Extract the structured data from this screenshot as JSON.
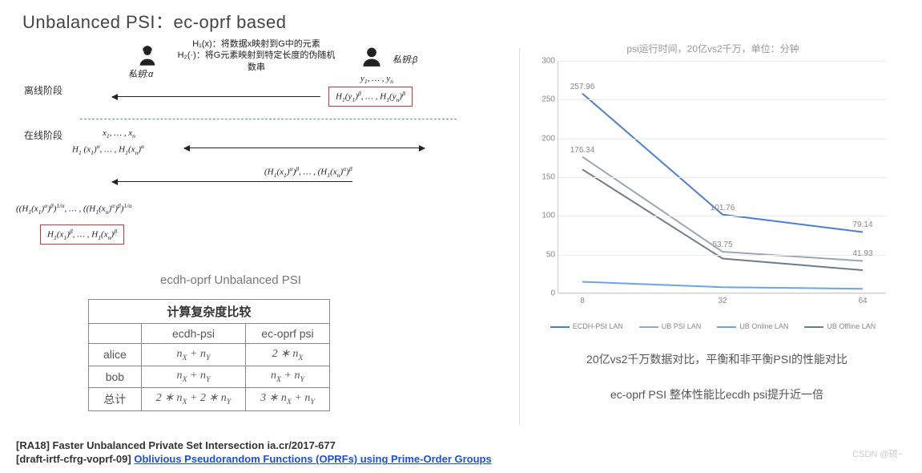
{
  "title": "Unbalanced PSI：ec-oprf based",
  "protocol": {
    "hash_notes": {
      "h1": "H₁(x)：将数据x映射到G中的元素",
      "h2": "H₂(·)：将G元素映射到特定长度的伪随机数串"
    },
    "alice_key_label": "私钥:α",
    "bob_key_label": "私钥:β",
    "offline_phase_label": "离线阶段",
    "online_phase_label": "在线阶段",
    "bob_input": "y₁, … , yₙ",
    "bob_boxed": "H₁(y₁)^β, … , H₁(yₙ)^β",
    "alice_input": "x₁, … , xₙ",
    "alice_h1": "H₁ (x₁)^α, … , H₁(xₙ)^α",
    "bob_reply": "(H₁(x₁)^α)^β, … , (H₁(xₙ)^α)^β",
    "alice_unblind": "((H₁(x₁)^α)^β)^{1/α}, … , ((H₁(xₙ)^α)^β)^{1/α}",
    "alice_boxed": "H₁(x₁)^β, … , H₁(xₙ)^β",
    "caption": "ecdh-oprf Unbalanced PSI"
  },
  "table": {
    "title": "计算复杂度比较",
    "columns": [
      "",
      "ecdh-psi",
      "ec-oprf psi"
    ],
    "rows": [
      [
        "alice",
        "n_X + n_Y",
        "2 * n_X"
      ],
      [
        "bob",
        "n_X + n_Y",
        "n_X + n_Y"
      ],
      [
        "总计",
        "2 * n_X + 2 * n_Y",
        "3 * n_X + n_Y"
      ]
    ]
  },
  "chart": {
    "title": "psi运行时间，20亿vs2千万，单位：分钟",
    "x_categories": [
      "8",
      "32",
      "64"
    ],
    "y_min": 0,
    "y_max": 300,
    "y_tick_step": 50,
    "series": [
      {
        "name": "ECDH-PSI LAN",
        "color": "#4a7fd4",
        "values": [
          257.96,
          101.76,
          79.14
        ],
        "labels": [
          "257.96",
          "101.76",
          "79.14"
        ]
      },
      {
        "name": "UB PSI LAN",
        "color": "#9aa7b8",
        "values": [
          176.34,
          53.75,
          41.93
        ],
        "labels": [
          "176.34",
          "53.75",
          "41.93"
        ]
      },
      {
        "name": "UB Online LAN",
        "color": "#6aa6e6",
        "values": [
          15,
          8,
          6
        ],
        "labels": [
          "",
          "",
          ""
        ]
      },
      {
        "name": "UB Offline LAN",
        "color": "#6e7b8f",
        "values": [
          160,
          45,
          30
        ],
        "labels": [
          "",
          "",
          ""
        ]
      }
    ],
    "legend_items": [
      "ECDH-PSI LAN",
      "UB PSI LAN",
      "UB Online LAN",
      "UB Offline LAN"
    ],
    "caption1": "20亿vs2千万数据对比，平衡和非平衡PSI的性能对比",
    "caption2": "ec-oprf PSI 整体性能比ecdh psi提升近一倍"
  },
  "refs": {
    "line1_prefix": "[RA18] Faster Unbalanced Private Set Intersection ia.cr/2017-677",
    "line2_prefix": "[draft-irtf-cfrg-voprf-09] ",
    "line2_link": "Oblivious Pseudorandom Functions (OPRFs) using Prime-Order Groups"
  },
  "watermark": "CSDN @硕~"
}
